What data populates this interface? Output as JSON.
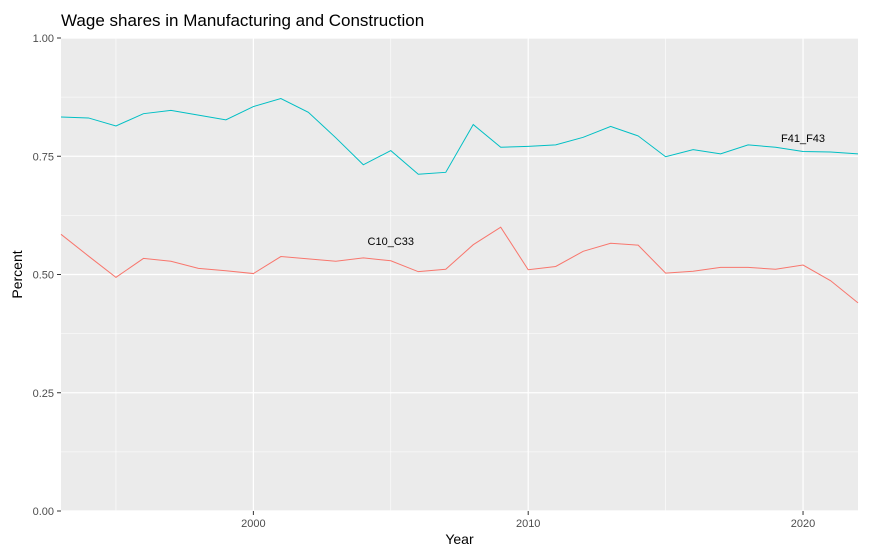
{
  "chart_data": {
    "type": "line",
    "title": "Wage shares in Manufacturing and Construction",
    "xlabel": "Year",
    "ylabel": "Percent",
    "xlim": [
      1993,
      2022
    ],
    "ylim": [
      0,
      1
    ],
    "x_ticks": [
      2000,
      2010,
      2020
    ],
    "y_ticks": [
      0,
      0.25,
      0.5,
      0.75,
      1
    ],
    "y_tick_labels": [
      "0.00",
      "0.25",
      "0.50",
      "0.75",
      "1.00"
    ],
    "grid": true,
    "legend": "none",
    "series": [
      {
        "name": "F41_F43",
        "color": "#00BFC4",
        "label_at": [
          2020,
          0.78
        ],
        "x": [
          1993,
          1994,
          1995,
          1996,
          1997,
          1998,
          1999,
          2000,
          2001,
          2002,
          2003,
          2004,
          2005,
          2006,
          2007,
          2008,
          2009,
          2010,
          2011,
          2012,
          2013,
          2014,
          2015,
          2016,
          2017,
          2018,
          2019,
          2020,
          2021,
          2022
        ],
        "values": [
          0.833,
          0.831,
          0.814,
          0.84,
          0.847,
          0.837,
          0.827,
          0.855,
          0.872,
          0.843,
          0.789,
          0.732,
          0.762,
          0.712,
          0.716,
          0.817,
          0.769,
          0.771,
          0.774,
          0.79,
          0.813,
          0.793,
          0.749,
          0.764,
          0.755,
          0.774,
          0.769,
          0.76,
          0.759,
          0.755
        ]
      },
      {
        "name": "C10_C33",
        "color": "#F8766D",
        "label_at": [
          2005,
          0.562
        ],
        "x": [
          1993,
          1994,
          1995,
          1996,
          1997,
          1998,
          1999,
          2000,
          2001,
          2002,
          2003,
          2004,
          2005,
          2006,
          2007,
          2008,
          2009,
          2010,
          2011,
          2012,
          2013,
          2014,
          2015,
          2016,
          2017,
          2018,
          2019,
          2020,
          2021,
          2022
        ],
        "values": [
          0.585,
          0.539,
          0.494,
          0.534,
          0.528,
          0.513,
          0.508,
          0.502,
          0.538,
          0.533,
          0.528,
          0.535,
          0.529,
          0.506,
          0.511,
          0.563,
          0.6,
          0.51,
          0.517,
          0.549,
          0.566,
          0.562,
          0.503,
          0.507,
          0.515,
          0.515,
          0.511,
          0.52,
          0.487,
          0.44
        ]
      }
    ]
  }
}
